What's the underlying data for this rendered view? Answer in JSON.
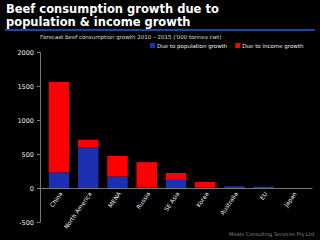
{
  "chart_data": {
    "type": "bar",
    "title": "Beef consumption growth due to population & income growth",
    "subtitle": "Forecast beef consumption growth 2010 – 2015 ('000 tonnes cwt)",
    "annotations": [
      "Meats Consulting Services Pty Ltd"
    ],
    "categories": [
      "China",
      "North America",
      "MENA",
      "Russia",
      "SE Asia",
      "Korea",
      "Australia",
      "EU",
      "Japan"
    ],
    "series": [
      {
        "name": "Due to population growth",
        "color": "#1c2fb0",
        "values": [
          230,
          600,
          170,
          10,
          120,
          15,
          25,
          20,
          0
        ]
      },
      {
        "name": "Due to income growth",
        "color": "#ff0000",
        "values": [
          1330,
          110,
          300,
          370,
          100,
          75,
          0,
          0,
          0
        ]
      }
    ],
    "stacked": true,
    "legend": "top",
    "grid": false,
    "ylim": [
      -500,
      2000
    ],
    "yticks": [
      -500,
      0,
      500,
      1000,
      1500,
      2000
    ]
  }
}
